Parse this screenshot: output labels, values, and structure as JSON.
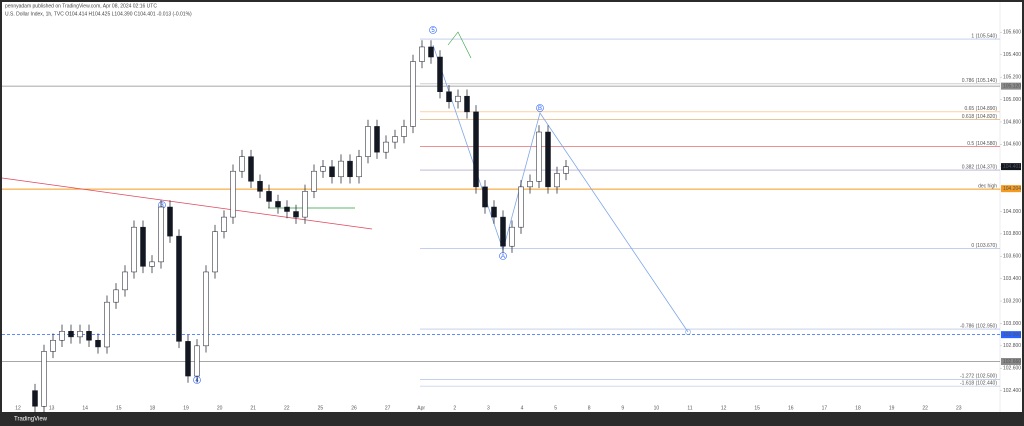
{
  "chart_data": {
    "type": "candlestick",
    "title": "pennyadam published on TradingView.com, Apr 08, 2024 02:16 UTC",
    "subtitle": "U.S. Dollar Index, 1h, TVC  O104.414 H104.425 L104.390 C104.401 -0.013 (-0.01%)",
    "brand": "TradingView",
    "open": [
      102.4,
      102.26,
      102.75,
      102.85,
      102.93,
      102.88,
      102.93,
      102.85,
      102.79,
      103.19,
      103.3,
      103.46,
      103.86,
      103.51,
      103.55,
      104.04,
      103.78,
      102.84,
      102.53,
      102.8,
      103.46,
      103.82,
      103.95,
      104.36,
      104.49,
      104.27,
      104.18,
      104.09,
      104.04,
      104.0,
      103.95,
      104.18,
      104.36,
      104.4,
      104.31,
      104.45,
      104.31,
      104.49,
      104.76,
      104.53,
      104.62,
      104.67,
      104.76,
      105.34,
      105.47,
      105.38,
      105.07,
      104.98,
      105.03,
      104.89,
      104.22,
      104.04,
      103.95,
      103.69,
      103.86,
      104.22,
      104.27,
      104.71,
      104.22,
      104.34
    ],
    "high": [
      102.46,
      102.81,
      102.91,
      102.99,
      102.99,
      102.99,
      102.99,
      102.91,
      103.25,
      103.36,
      103.52,
      103.92,
      103.92,
      103.61,
      104.1,
      104.1,
      103.84,
      102.9,
      102.86,
      103.52,
      103.88,
      104.01,
      104.42,
      104.55,
      104.55,
      104.33,
      104.24,
      104.15,
      104.1,
      104.06,
      104.24,
      104.42,
      104.46,
      104.46,
      104.51,
      104.51,
      104.55,
      104.82,
      104.82,
      104.68,
      104.73,
      104.82,
      105.4,
      105.53,
      105.53,
      105.44,
      105.13,
      105.09,
      105.09,
      104.95,
      104.28,
      104.1,
      104.01,
      103.92,
      104.28,
      104.33,
      104.77,
      104.77,
      104.4,
      104.46
    ],
    "low": [
      102.2,
      102.2,
      102.69,
      102.79,
      102.82,
      102.82,
      102.79,
      102.73,
      102.73,
      103.13,
      103.24,
      103.4,
      103.45,
      103.45,
      103.49,
      103.72,
      102.78,
      102.47,
      102.47,
      102.74,
      103.4,
      103.76,
      103.89,
      104.3,
      104.21,
      104.12,
      104.03,
      103.98,
      103.94,
      103.89,
      103.89,
      104.12,
      104.3,
      104.25,
      104.25,
      104.25,
      104.25,
      104.43,
      104.47,
      104.47,
      104.56,
      104.61,
      104.7,
      105.28,
      105.32,
      105.01,
      104.92,
      104.92,
      104.83,
      104.16,
      103.98,
      103.89,
      103.63,
      103.63,
      103.8,
      104.16,
      104.21,
      104.16,
      104.16,
      104.28
    ],
    "close": [
      102.26,
      102.75,
      102.85,
      102.93,
      102.88,
      102.93,
      102.85,
      102.79,
      103.19,
      103.3,
      103.46,
      103.86,
      103.51,
      103.55,
      104.04,
      103.78,
      102.84,
      102.53,
      102.8,
      103.46,
      103.82,
      103.95,
      104.36,
      104.49,
      104.27,
      104.18,
      104.09,
      104.04,
      104.0,
      103.95,
      104.18,
      104.36,
      104.4,
      104.31,
      104.45,
      104.31,
      104.49,
      104.76,
      104.53,
      104.62,
      104.67,
      104.76,
      105.34,
      105.47,
      105.38,
      105.07,
      104.98,
      105.03,
      104.89,
      104.22,
      104.04,
      103.95,
      103.69,
      103.86,
      104.22,
      104.27,
      104.71,
      104.22,
      104.34,
      104.4
    ],
    "up_color": "#ffffff",
    "down_color": "#131722",
    "ylim": [
      102.2,
      105.8
    ],
    "yticks": [
      {
        "value": 102.4,
        "label": "102.400"
      },
      {
        "value": 102.6,
        "label": "102.600"
      },
      {
        "value": 102.8,
        "label": "102.800"
      },
      {
        "value": 103.0,
        "label": "103.000"
      },
      {
        "value": 103.2,
        "label": "103.200"
      },
      {
        "value": 103.4,
        "label": "103.400"
      },
      {
        "value": 103.6,
        "label": "103.600"
      },
      {
        "value": 103.8,
        "label": "103.800"
      },
      {
        "value": 104.0,
        "label": "104.000"
      },
      {
        "value": 104.2,
        "label": "104.200"
      },
      {
        "value": 104.4,
        "label": "104.400"
      },
      {
        "value": 104.6,
        "label": "104.600"
      },
      {
        "value": 104.8,
        "label": "104.800"
      },
      {
        "value": 105.0,
        "label": "105.000"
      },
      {
        "value": 105.2,
        "label": "105.200"
      },
      {
        "value": 105.4,
        "label": "105.400"
      },
      {
        "value": 105.6,
        "label": "105.600"
      }
    ],
    "date_labels": [
      "12",
      "13",
      "14",
      "15",
      "18",
      "19",
      "20",
      "21",
      "22",
      "25",
      "26",
      "27",
      "Apr",
      "2",
      "3",
      "4",
      "5",
      "8",
      "9",
      "10",
      "11",
      "12",
      "15",
      "16",
      "17",
      "18",
      "19",
      "22",
      "23"
    ],
    "levels": [
      {
        "label": "1 (105.540)",
        "value": 105.54,
        "color": "#9fb4e0"
      },
      {
        "label": "0.786 (105.140)",
        "value": 105.14,
        "color": "#9e9e9e"
      },
      {
        "label": "0.65 (104.890)",
        "value": 104.89,
        "color": "#f7a24b"
      },
      {
        "label": "0.618 (104.820)",
        "value": 104.82,
        "color": "#d9a45f"
      },
      {
        "label": "0.5 (104.580)",
        "value": 104.58,
        "color": "#e05050"
      },
      {
        "label": "0.382 (104.370)",
        "value": 104.37,
        "color": "#9c8fc4"
      },
      {
        "label": "dec high",
        "value": 104.2,
        "color": "#f59a1d"
      },
      {
        "label": "0 (103.670)",
        "value": 103.67,
        "color": "#9fb4e0"
      },
      {
        "label": "-0.786 (102.950)",
        "value": 102.95,
        "color": "#9fb4e0"
      },
      {
        "label": "-1.272 (102.500)",
        "value": 102.5,
        "color": "#9fb4e0"
      },
      {
        "label": "-1.618 (102.440)",
        "value": 102.44,
        "color": "#9fb4e0"
      }
    ],
    "price_badges": [
      {
        "value": 105.12,
        "label": "105.120",
        "color": "#8a8a8a"
      },
      {
        "value": 104.401,
        "color": "#131722"
      },
      {
        "value": 104.204,
        "color": "#f59a1d"
      },
      {
        "value": 102.9,
        "label": "102.900",
        "color": "#2962ff"
      },
      {
        "value": 102.66,
        "label": "102.660",
        "color": "#8a8a8a"
      }
    ],
    "wave_labels": [
      "5",
      "3",
      "4",
      "B",
      "A"
    ]
  }
}
